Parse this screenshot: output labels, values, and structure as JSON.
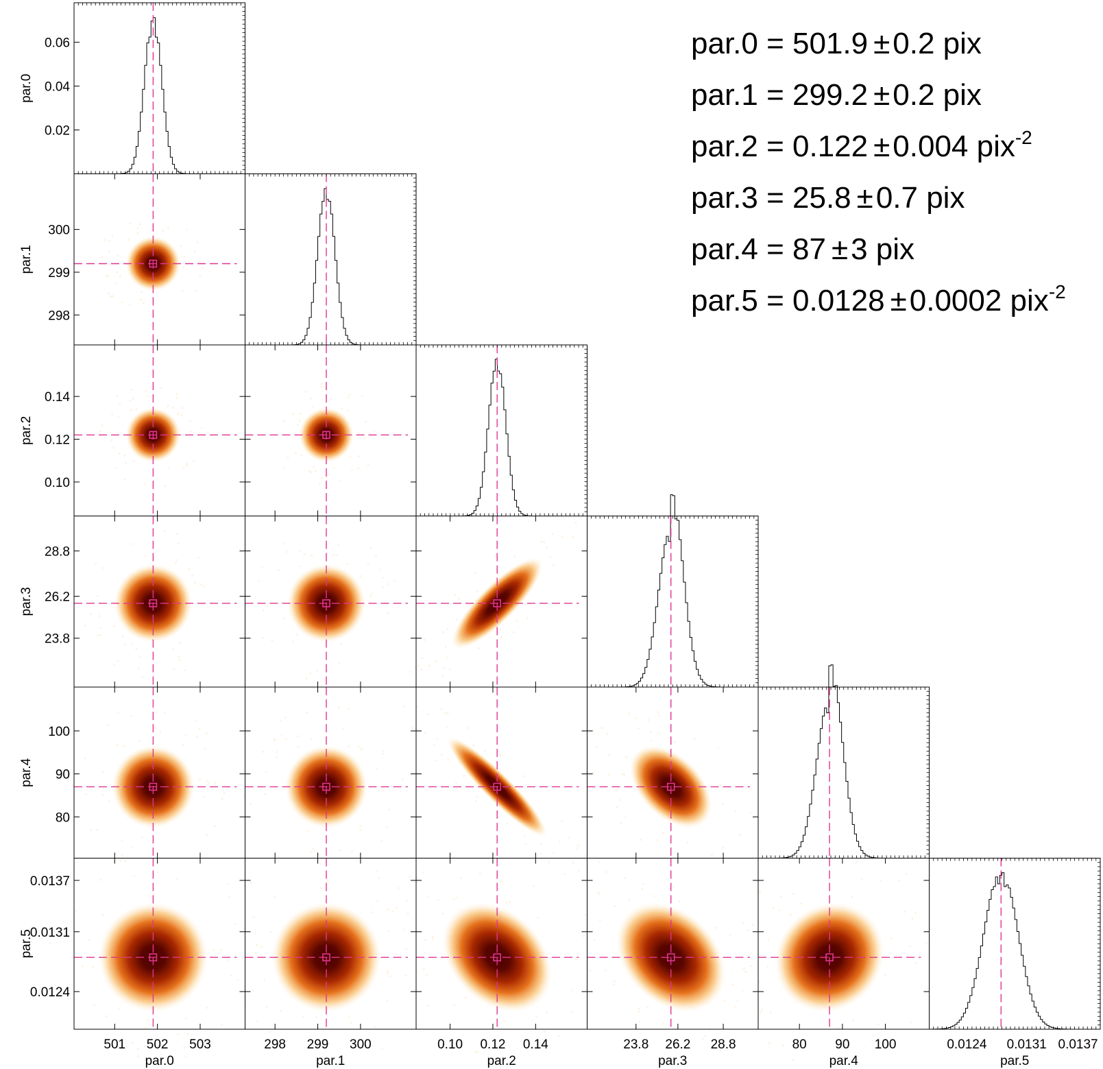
{
  "chart_data": {
    "type": "corner",
    "params": [
      {
        "name": "par.0",
        "best": 501.9,
        "sigma": 0.2,
        "range": [
          500.05,
          504.05
        ],
        "ticks": [
          501,
          502,
          503
        ],
        "tick_labels": [
          "501",
          "502",
          "503"
        ]
      },
      {
        "name": "par.1",
        "best": 299.2,
        "sigma": 0.2,
        "range": [
          297.3,
          301.3
        ],
        "ticks": [
          298,
          299,
          300
        ],
        "tick_labels": [
          "298",
          "299",
          "300"
        ]
      },
      {
        "name": "par.2",
        "best": 0.122,
        "sigma": 0.004,
        "range": [
          0.0841,
          0.1641
        ],
        "ticks": [
          0.1,
          0.12,
          0.14
        ],
        "tick_labels": [
          "0.10",
          "0.12",
          "0.14"
        ]
      },
      {
        "name": "par.3",
        "best": 25.8,
        "sigma": 0.7,
        "range": [
          21.0,
          30.8
        ],
        "ticks": [
          23.8,
          26.2,
          28.8
        ],
        "tick_labels": [
          "23.8",
          "26.2",
          "28.8"
        ]
      },
      {
        "name": "par.4",
        "best": 87,
        "sigma": 3,
        "range": [
          70.4,
          110.2
        ],
        "ticks": [
          80,
          90,
          100
        ],
        "tick_labels": [
          "80",
          "90",
          "100"
        ]
      },
      {
        "name": "par.5",
        "best": 0.0128,
        "sigma": 0.0002,
        "range": [
          0.01196,
          0.01396
        ],
        "ticks": [
          0.0124,
          0.0131,
          0.0137
        ],
        "tick_labels": [
          "0.0124",
          "0.0131",
          "0.0137"
        ]
      }
    ],
    "correlations": {
      "2-3": 0.6,
      "2-4": -0.8,
      "3-4": -0.45,
      "2-5": -0.3,
      "3-5": -0.3,
      "4-5": 0.1
    },
    "results": [
      {
        "lhs": "par.0 = 501.9",
        "pm": "±",
        "rhs": "0.2 pix",
        "sup": ""
      },
      {
        "lhs": "par.1 = 299.2",
        "pm": "±",
        "rhs": "0.2 pix",
        "sup": ""
      },
      {
        "lhs": "par.2 = 0.122",
        "pm": "±",
        "rhs": "0.004 pix",
        "sup": "-2"
      },
      {
        "lhs": "par.3 = 25.8",
        "pm": "±",
        "rhs": "0.7 pix",
        "sup": ""
      },
      {
        "lhs": "par.4 = 87",
        "pm": "±",
        "rhs": "3 pix",
        "sup": ""
      },
      {
        "lhs": "par.5 = 0.0128",
        "pm": "±",
        "rhs": "0.0002 pix",
        "sup": "-2"
      }
    ],
    "colors": {
      "marker": "#e0358f",
      "frame": "#000000",
      "density_peak": "#4a0000"
    }
  }
}
